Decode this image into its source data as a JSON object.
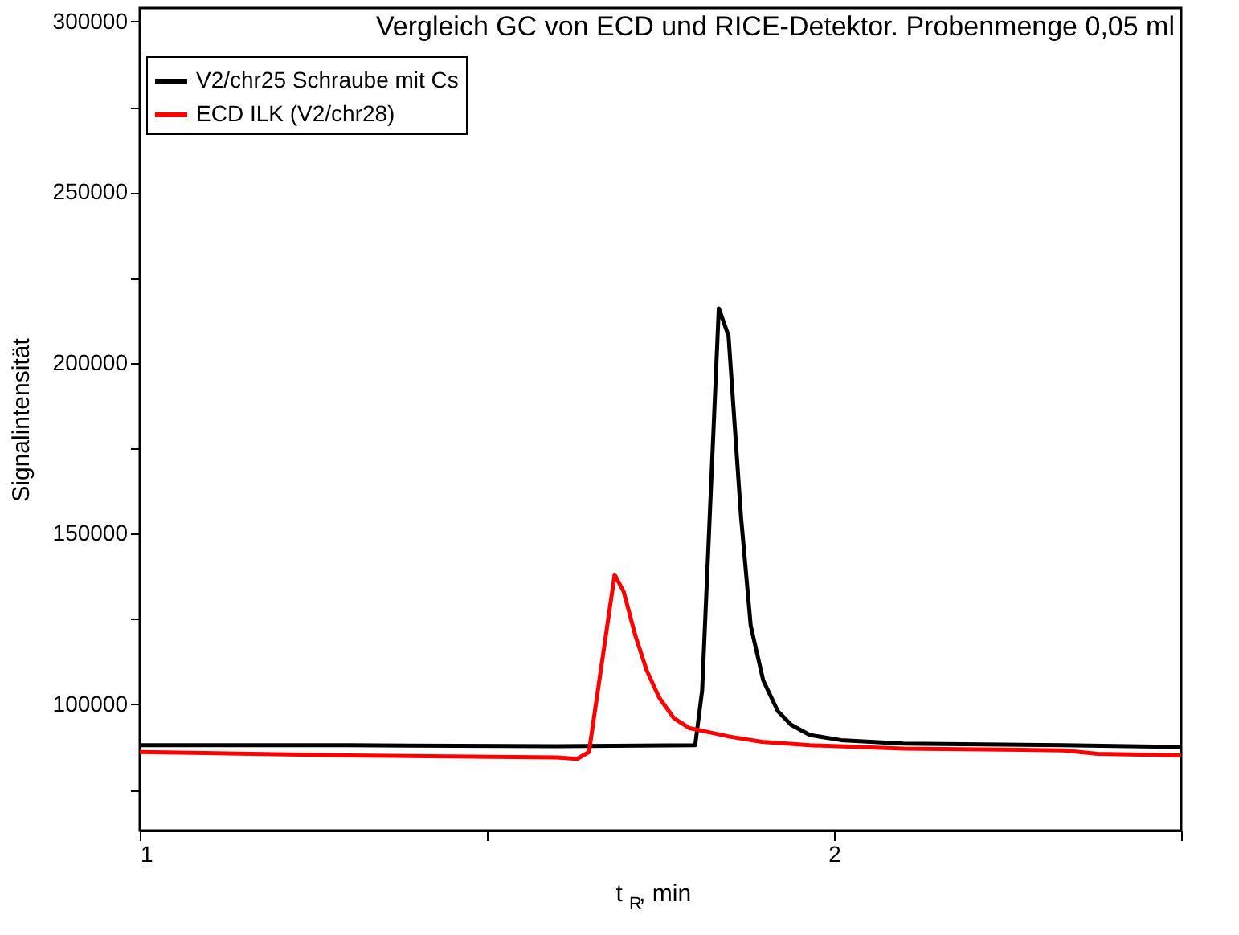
{
  "chart_data": {
    "type": "line",
    "title": "Vergleich GC von ECD und RICE-Detektor. Probenmenge 0,05 ml",
    "xlabel": "t$_{R}$, min",
    "ylabel": "Signalintensität",
    "xlim": [
      1,
      2.5
    ],
    "ylim": [
      63000,
      304000
    ],
    "xticks": [
      1,
      {
        "value": 1.5,
        "label": null
      },
      2,
      {
        "value": 2.5,
        "label": null
      }
    ],
    "yticks": [
      {
        "value": 75000,
        "label": null
      },
      100000,
      {
        "value": 125000,
        "label": null
      },
      150000,
      {
        "value": 175000,
        "label": null
      },
      200000,
      {
        "value": 225000,
        "label": null
      },
      250000,
      {
        "value": 275000,
        "label": null
      },
      300000
    ],
    "grid": false,
    "legend": "top left",
    "line_style": "solid",
    "marker": "none",
    "series": [
      {
        "name": "V2/chr25 Schraube mit Cs",
        "color": "#000000",
        "x": [
          1,
          1.3,
          1.6,
          1.8,
          1.81,
          1.834,
          1.848,
          1.866,
          1.88,
          1.898,
          1.919,
          1.938,
          1.965,
          2.01,
          2.1,
          2.33,
          2.5
        ],
        "values": [
          88000,
          88000,
          87700,
          88000,
          104000,
          216000,
          208000,
          155000,
          123000,
          107000,
          98000,
          94000,
          91000,
          89500,
          88500,
          88000,
          87500
        ]
      },
      {
        "name": "ECD ILK (V2/chr28)",
        "color": "#ff0000",
        "x": [
          1,
          1.3,
          1.6,
          1.63,
          1.647,
          1.684,
          1.697,
          1.714,
          1.73,
          1.748,
          1.769,
          1.792,
          1.827,
          1.85,
          1.896,
          1.965,
          2.1,
          2.33,
          2.38,
          2.5
        ],
        "values": [
          86000,
          85000,
          84400,
          84000,
          86000,
          138000,
          133000,
          120000,
          110000,
          102000,
          96000,
          93000,
          91500,
          90500,
          89000,
          88000,
          87000,
          86500,
          85500,
          85000
        ]
      }
    ]
  }
}
